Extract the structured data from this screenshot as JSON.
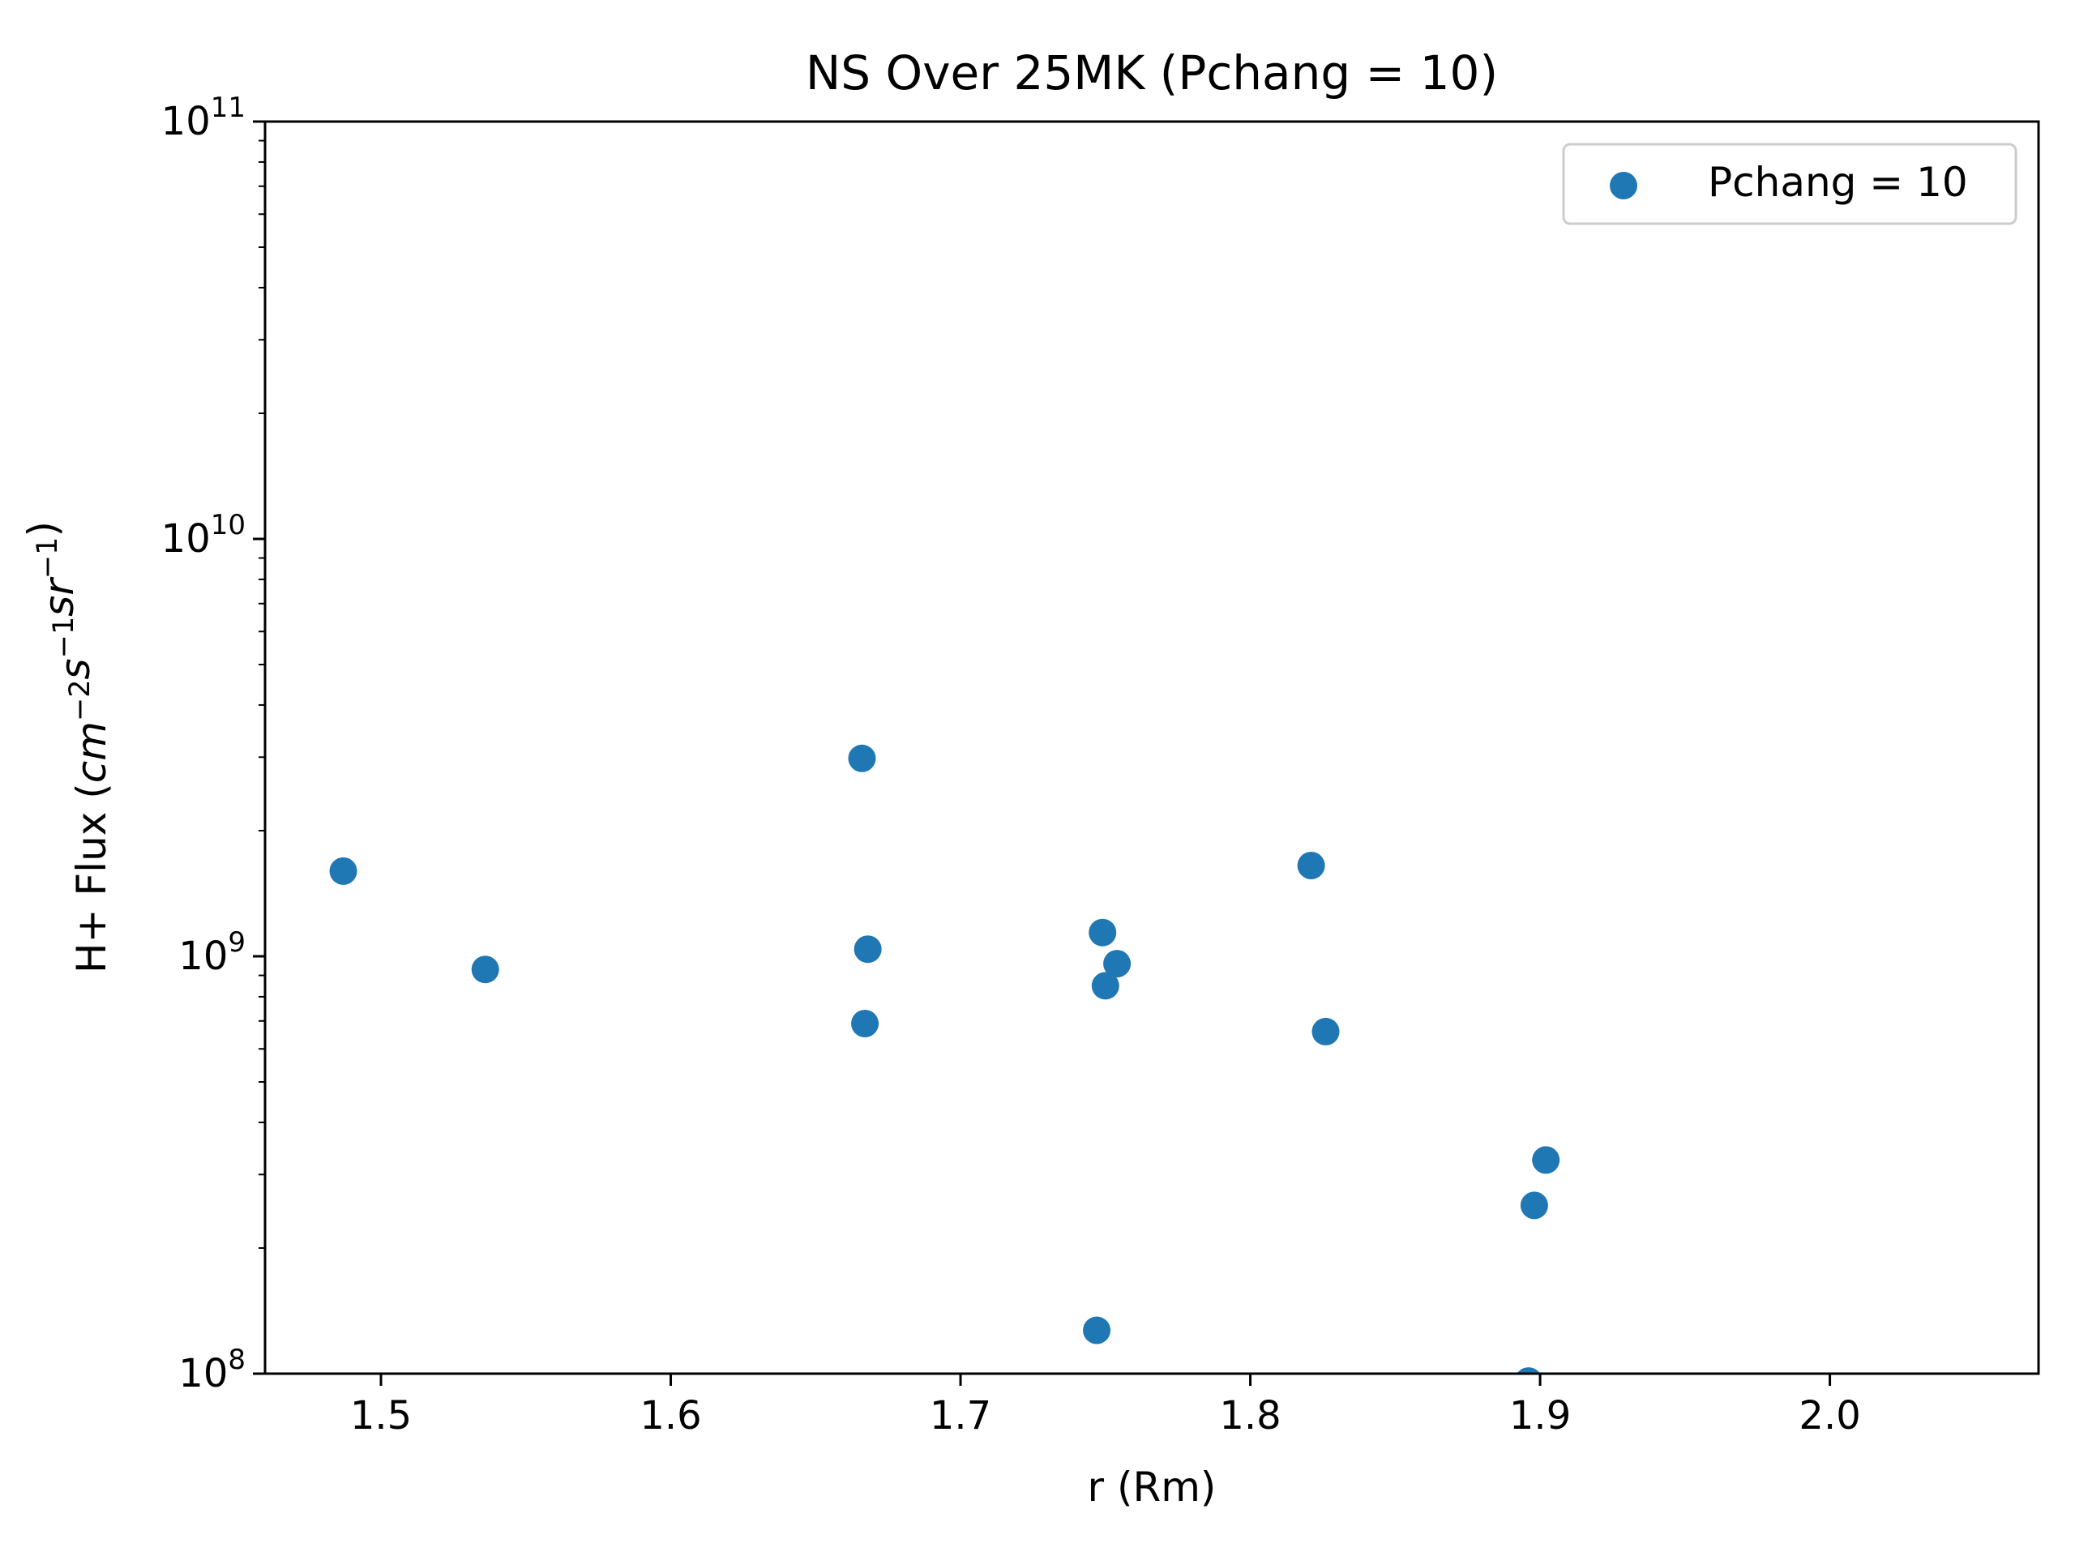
{
  "chart_data": {
    "type": "scatter",
    "title": "NS Over 25MK  (Pchang = 10)",
    "xlabel": "r (Rm)",
    "ylabel": {
      "prefix": "H+ Flux (",
      "parts": [
        {
          "base": "cm",
          "exp": "−2"
        },
        {
          "base": "s",
          "exp": "−1"
        },
        {
          "base": "sr",
          "exp": "−1"
        }
      ],
      "suffix": ")"
    },
    "xlim": [
      1.46,
      2.072
    ],
    "ylim": [
      100000000,
      100000000000
    ],
    "yscale": "log",
    "grid": false,
    "legend_position": "top-right",
    "xticks": [
      {
        "value": 1.5,
        "label": "1.5"
      },
      {
        "value": 1.6,
        "label": "1.6"
      },
      {
        "value": 1.7,
        "label": "1.7"
      },
      {
        "value": 1.8,
        "label": "1.8"
      },
      {
        "value": 1.9,
        "label": "1.9"
      },
      {
        "value": 2.0,
        "label": "2.0"
      }
    ],
    "yticks": [
      {
        "value": 100000000,
        "base": "10",
        "exp": "8"
      },
      {
        "value": 1000000000,
        "base": "10",
        "exp": "9"
      },
      {
        "value": 10000000000,
        "base": "10",
        "exp": "10"
      },
      {
        "value": 100000000000,
        "base": "10",
        "exp": "11"
      }
    ],
    "series": [
      {
        "name": "Pchang = 10",
        "color": "#1f77b4",
        "points": [
          {
            "x": 1.487,
            "y": 1600000000
          },
          {
            "x": 1.536,
            "y": 930000000
          },
          {
            "x": 1.666,
            "y": 2980000000
          },
          {
            "x": 1.668,
            "y": 1040000000
          },
          {
            "x": 1.667,
            "y": 690000000
          },
          {
            "x": 1.749,
            "y": 1140000000
          },
          {
            "x": 1.754,
            "y": 960000000
          },
          {
            "x": 1.75,
            "y": 850000000
          },
          {
            "x": 1.747,
            "y": 127000000
          },
          {
            "x": 1.821,
            "y": 1650000000
          },
          {
            "x": 1.826,
            "y": 660000000
          },
          {
            "x": 1.902,
            "y": 325000000
          },
          {
            "x": 1.898,
            "y": 253000000
          },
          {
            "x": 1.896,
            "y": 96000000
          }
        ]
      }
    ]
  }
}
